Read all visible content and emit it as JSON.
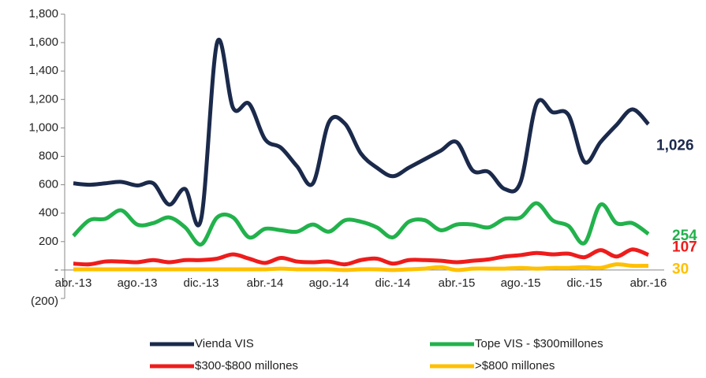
{
  "chart_data": {
    "type": "line",
    "categories": [
      "abr.-13",
      null,
      null,
      null,
      "ago.-13",
      null,
      null,
      null,
      "dic.-13",
      null,
      null,
      null,
      "abr.-14",
      null,
      null,
      null,
      "ago.-14",
      null,
      null,
      null,
      "dic.-14",
      null,
      null,
      null,
      "abr.-15",
      null,
      null,
      null,
      "ago.-15",
      null,
      null,
      null,
      "dic.-15",
      null,
      null,
      null,
      "abr.-16"
    ],
    "series": [
      {
        "name": "Vienda VIS",
        "color": "#1b2a4b",
        "values": [
          610,
          600,
          610,
          620,
          595,
          610,
          460,
          570,
          360,
          1600,
          1140,
          1170,
          920,
          860,
          730,
          610,
          1040,
          1030,
          820,
          720,
          660,
          720,
          780,
          840,
          900,
          700,
          690,
          570,
          620,
          1170,
          1110,
          1090,
          760,
          900,
          1020,
          1130,
          1026
        ],
        "value_labels": [
          null,
          null,
          null,
          null,
          null,
          null,
          null,
          null,
          null,
          null,
          null,
          null,
          null,
          null,
          null,
          null,
          null,
          null,
          null,
          null,
          null,
          null,
          null,
          null,
          null,
          null,
          null,
          null,
          null,
          null,
          null,
          null,
          null,
          null,
          null,
          null,
          "1,026"
        ]
      },
      {
        "name": "Tope VIS - $300millones",
        "color": "#22b24c",
        "values": [
          240,
          350,
          360,
          420,
          320,
          330,
          370,
          300,
          180,
          370,
          370,
          230,
          290,
          280,
          270,
          320,
          270,
          350,
          340,
          300,
          230,
          340,
          350,
          280,
          320,
          320,
          300,
          360,
          370,
          470,
          350,
          310,
          190,
          460,
          330,
          330,
          254
        ]
      },
      {
        "name": "$300-$800 millones",
        "color": "#ee1c1c",
        "values": [
          45,
          40,
          60,
          60,
          55,
          70,
          55,
          70,
          70,
          80,
          110,
          80,
          50,
          85,
          60,
          55,
          60,
          40,
          70,
          80,
          45,
          70,
          70,
          65,
          55,
          65,
          75,
          95,
          105,
          120,
          110,
          115,
          90,
          140,
          95,
          145,
          107
        ]
      },
      {
        "name": ">$800 millones",
        "color": "#ffc000",
        "values": [
          5,
          5,
          5,
          5,
          5,
          5,
          5,
          5,
          5,
          5,
          5,
          5,
          5,
          10,
          5,
          5,
          5,
          0,
          5,
          5,
          0,
          5,
          10,
          20,
          0,
          10,
          10,
          10,
          15,
          10,
          15,
          15,
          20,
          15,
          40,
          30,
          30
        ]
      }
    ],
    "ylim": [
      -200,
      1800
    ],
    "yticks": [
      {
        "value": -200,
        "label": "(200)"
      },
      {
        "value": 0,
        "label": "-"
      },
      200,
      400,
      600,
      800,
      {
        "value": 1000,
        "label": "1,000"
      },
      {
        "value": 1200,
        "label": "1,200"
      },
      {
        "value": 1400,
        "label": "1,400"
      },
      {
        "value": 1600,
        "label": "1,600"
      },
      {
        "value": 1800,
        "label": "1,800"
      }
    ],
    "grid": false,
    "legend": "bottom"
  }
}
